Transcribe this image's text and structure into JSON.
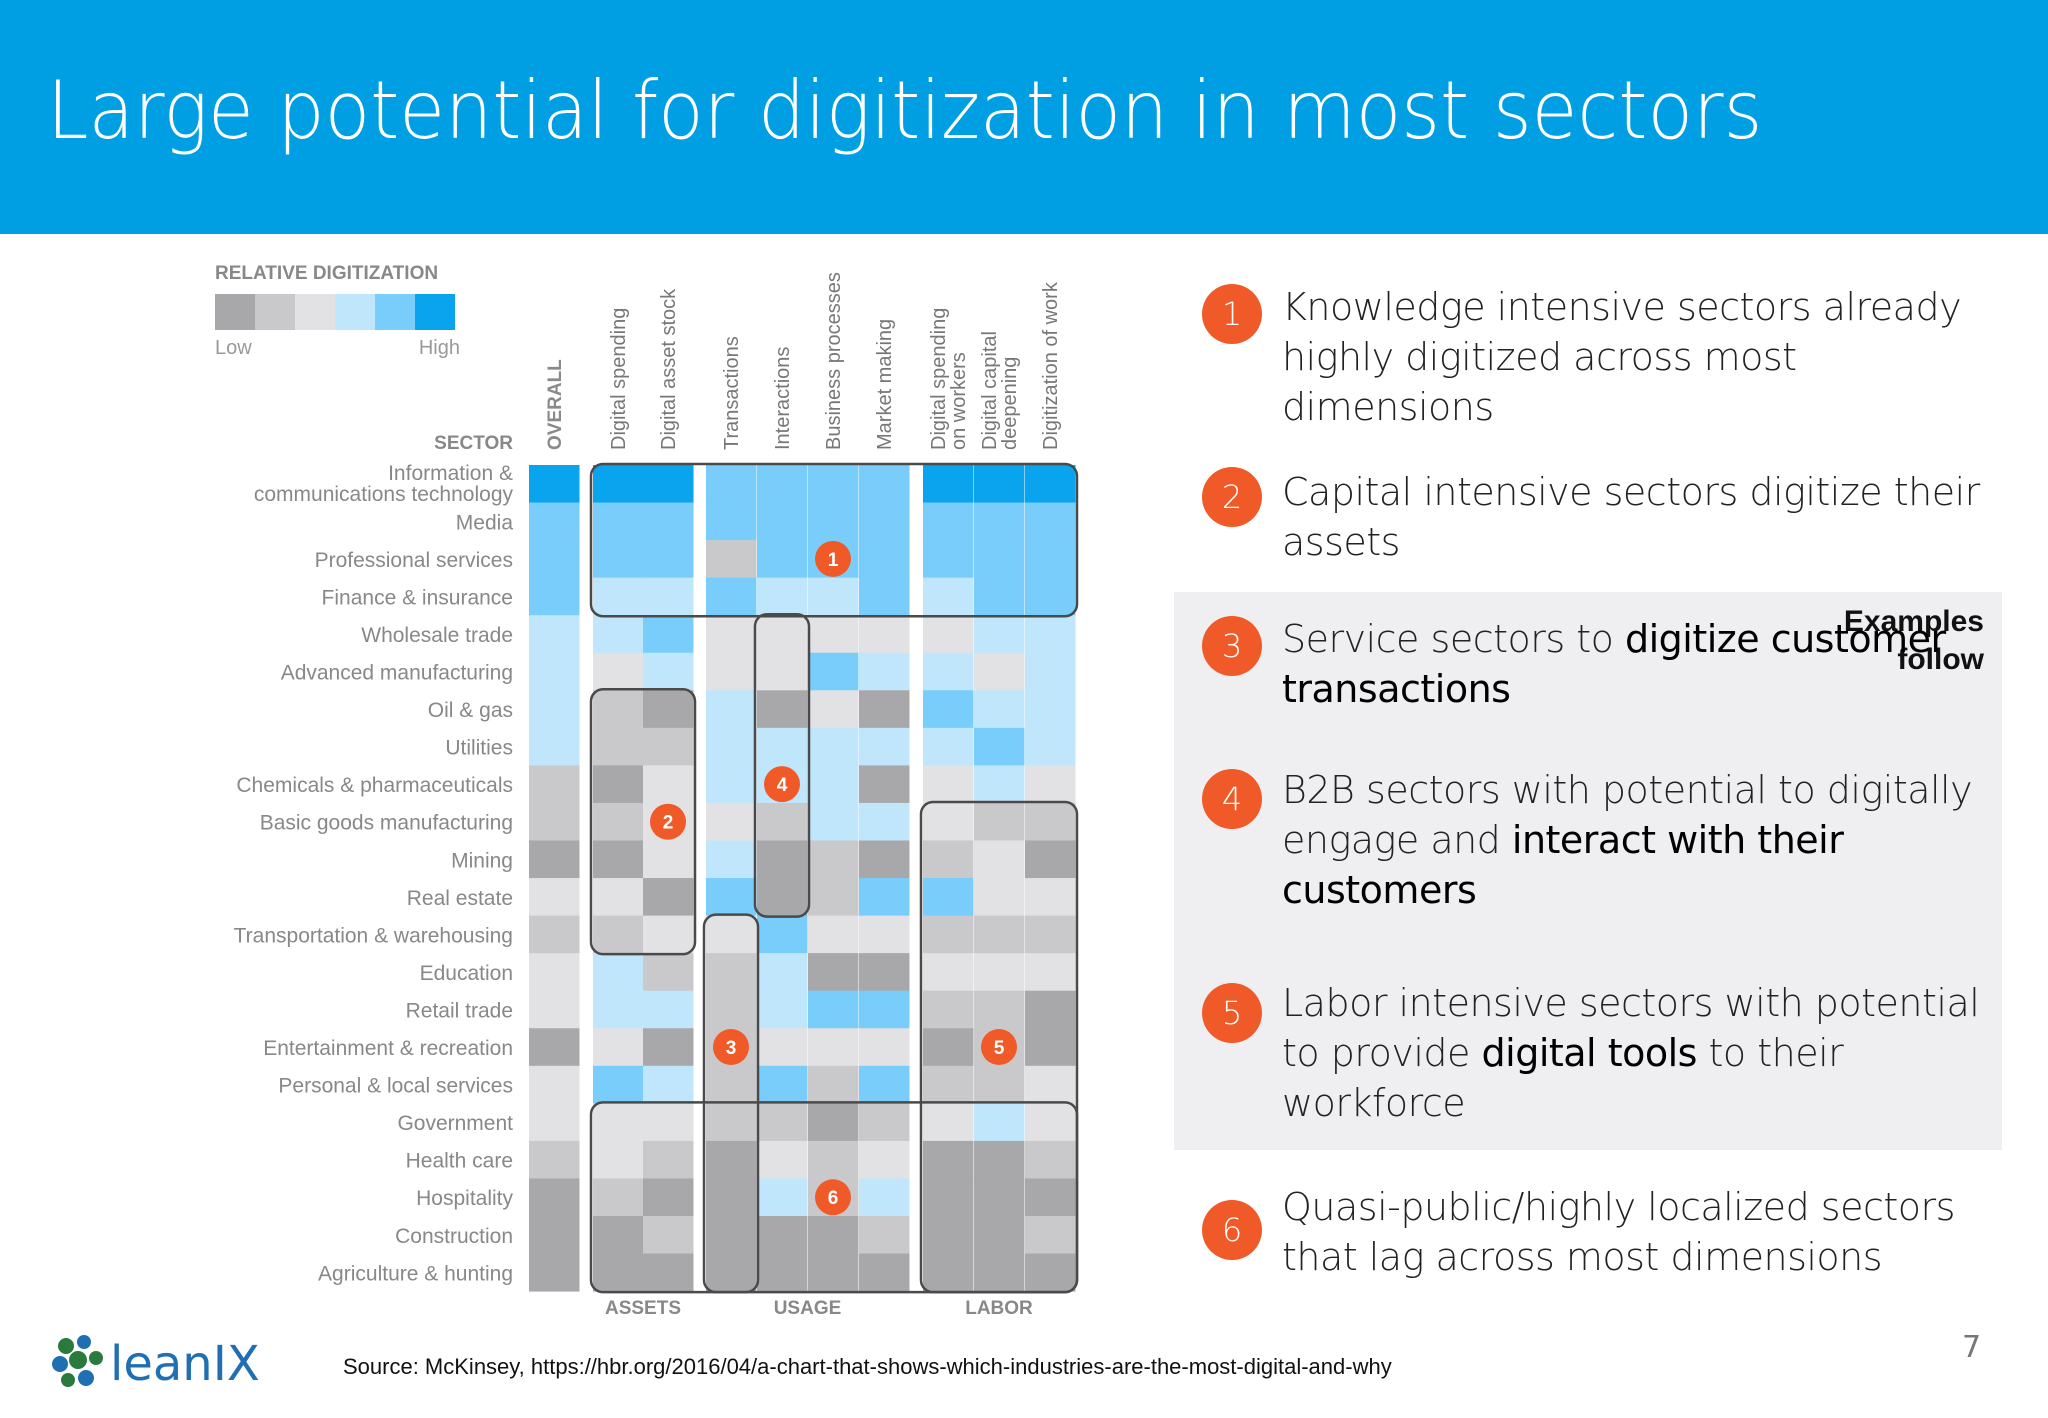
{
  "slide": {
    "title": "Large potential for digitization in most sectors",
    "examples_note": "Examples follow",
    "source": "Source: McKinsey, https://hbr.org/2016/04/a-chart-that-shows-which-industries-are-the-most-digital-and-why",
    "page_number": "7",
    "logo_text": "leanIX"
  },
  "bullets": [
    {
      "number": "1",
      "parts": [
        {
          "text": "Knowledge intensive sectors already highly digitized across most dimensions",
          "bold": false
        }
      ]
    },
    {
      "number": "2",
      "parts": [
        {
          "text": "Capital intensive sectors digitize their assets",
          "bold": false
        }
      ]
    },
    {
      "number": "3",
      "parts": [
        {
          "text": "Service sectors to ",
          "bold": false
        },
        {
          "text": "digitize customer transactions",
          "bold": true
        }
      ]
    },
    {
      "number": "4",
      "parts": [
        {
          "text": "B2B sectors with potential to digitally engage and ",
          "bold": false
        },
        {
          "text": "interact with their customers",
          "bold": true
        }
      ]
    },
    {
      "number": "5",
      "parts": [
        {
          "text": "Labor intensive sectors with potential to provide ",
          "bold": false
        },
        {
          "text": "digital tools",
          "bold": true
        },
        {
          "text": " to their workforce",
          "bold": false
        }
      ]
    },
    {
      "number": "6",
      "parts": [
        {
          "text": "Quasi-public/highly localized sectors that lag across most dimensions",
          "bold": false
        }
      ]
    }
  ],
  "colors": {
    "header": "#009fe3",
    "level_palette": [
      "#a8a8aa",
      "#c9c9cb",
      "#e2e2e4",
      "#c0e6fb",
      "#79cdfa",
      "#0aa3ee"
    ],
    "marker": "#f05a28"
  },
  "chart_data": {
    "type": "heatmap",
    "legend_title": "RELATIVE DIGITIZATION",
    "legend_low": "Low",
    "legend_high": "High",
    "row_header": "SECTOR",
    "columns": [
      "OVERALL",
      "Digital spending",
      "Digital asset stock",
      "Transactions",
      "Interactions",
      "Business processes",
      "Market making",
      "Digital spending on workers",
      "Digital capital deepening",
      "Digitization of work"
    ],
    "column_labels": [
      [
        "OVERALL"
      ],
      [
        "Digital spending"
      ],
      [
        "Digital asset stock"
      ],
      [
        "Transactions"
      ],
      [
        "Interactions"
      ],
      [
        "Business processes"
      ],
      [
        "Market making"
      ],
      [
        "Digital spending",
        "on workers"
      ],
      [
        "Digital capital",
        "deepening"
      ],
      [
        "Digitization of work"
      ]
    ],
    "groups": [
      {
        "label": "ASSETS",
        "columns": [
          1,
          2
        ]
      },
      {
        "label": "USAGE",
        "columns": [
          3,
          4,
          5,
          6
        ]
      },
      {
        "label": "LABOR",
        "columns": [
          7,
          8,
          9
        ]
      }
    ],
    "rows": [
      "Information & communications technology",
      "Media",
      "Professional services",
      "Finance & insurance",
      "Wholesale trade",
      "Advanced manufacturing",
      "Oil & gas",
      "Utilities",
      "Chemicals & pharmaceuticals",
      "Basic goods manufacturing",
      "Mining",
      "Real estate",
      "Transportation & warehousing",
      "Education",
      "Retail trade",
      "Entertainment & recreation",
      "Personal & local services",
      "Government",
      "Health care",
      "Hospitality",
      "Construction",
      "Agriculture & hunting"
    ],
    "row_labels": [
      [
        "Information &",
        "communications technology"
      ],
      [
        "Media"
      ],
      [
        "Professional services"
      ],
      [
        "Finance & insurance"
      ],
      [
        "Wholesale trade"
      ],
      [
        "Advanced manufacturing"
      ],
      [
        "Oil & gas"
      ],
      [
        "Utilities"
      ],
      [
        "Chemicals & pharmaceuticals"
      ],
      [
        "Basic goods manufacturing"
      ],
      [
        "Mining"
      ],
      [
        "Real estate"
      ],
      [
        "Transportation & warehousing"
      ],
      [
        "Education"
      ],
      [
        "Retail trade"
      ],
      [
        "Entertainment & recreation"
      ],
      [
        "Personal & local services"
      ],
      [
        "Government"
      ],
      [
        "Health care"
      ],
      [
        "Hospitality"
      ],
      [
        "Construction"
      ],
      [
        "Agriculture & hunting"
      ]
    ],
    "scale": [
      1,
      6
    ],
    "values": [
      [
        6,
        6,
        6,
        5,
        5,
        5,
        5,
        6,
        6,
        6
      ],
      [
        5,
        5,
        5,
        5,
        5,
        5,
        5,
        5,
        5,
        5
      ],
      [
        5,
        5,
        5,
        2,
        5,
        5,
        5,
        5,
        5,
        5
      ],
      [
        5,
        4,
        4,
        5,
        4,
        4,
        5,
        4,
        5,
        5
      ],
      [
        4,
        4,
        5,
        3,
        3,
        3,
        3,
        3,
        4,
        4
      ],
      [
        4,
        3,
        4,
        3,
        3,
        5,
        4,
        4,
        3,
        4
      ],
      [
        4,
        2,
        1,
        4,
        1,
        3,
        1,
        5,
        4,
        4
      ],
      [
        4,
        2,
        2,
        4,
        4,
        4,
        4,
        4,
        5,
        4
      ],
      [
        2,
        1,
        3,
        4,
        4,
        4,
        1,
        3,
        4,
        3
      ],
      [
        2,
        2,
        3,
        3,
        2,
        4,
        4,
        3,
        2,
        2
      ],
      [
        1,
        1,
        3,
        4,
        1,
        2,
        1,
        2,
        3,
        1
      ],
      [
        3,
        3,
        1,
        5,
        1,
        2,
        5,
        5,
        3,
        3
      ],
      [
        2,
        2,
        3,
        3,
        5,
        3,
        3,
        2,
        2,
        2
      ],
      [
        3,
        4,
        2,
        2,
        4,
        1,
        1,
        3,
        3,
        3
      ],
      [
        3,
        4,
        4,
        2,
        4,
        5,
        5,
        2,
        2,
        1
      ],
      [
        1,
        3,
        1,
        2,
        3,
        3,
        3,
        1,
        2,
        1
      ],
      [
        3,
        5,
        4,
        2,
        5,
        2,
        5,
        2,
        2,
        3
      ],
      [
        3,
        3,
        3,
        2,
        2,
        1,
        2,
        3,
        4,
        3
      ],
      [
        2,
        3,
        2,
        1,
        3,
        2,
        3,
        1,
        1,
        2
      ],
      [
        1,
        2,
        1,
        1,
        4,
        2,
        4,
        1,
        1,
        1
      ],
      [
        1,
        1,
        2,
        1,
        1,
        1,
        2,
        1,
        1,
        2
      ],
      [
        1,
        1,
        1,
        1,
        1,
        1,
        1,
        1,
        1,
        1
      ]
    ],
    "highlights": [
      {
        "label": "1",
        "col_start": 1,
        "col_end": 9,
        "row_start": 0,
        "row_end": 3,
        "marker_col": 5,
        "marker_row": 2
      },
      {
        "label": "2",
        "col_start": 1,
        "col_end": 2,
        "row_start": 6,
        "row_end": 12,
        "marker_col": 2,
        "marker_row": 9
      },
      {
        "label": "3",
        "col_start": 3,
        "col_end": 3,
        "row_start": 12,
        "row_end": 21,
        "marker_col": 3,
        "marker_row": 15
      },
      {
        "label": "4",
        "col_start": 4,
        "col_end": 4,
        "row_start": 4,
        "row_end": 11,
        "marker_col": 4,
        "marker_row": 8
      },
      {
        "label": "5",
        "col_start": 7,
        "col_end": 9,
        "row_start": 9,
        "row_end": 21,
        "marker_col": 8,
        "marker_row": 15
      },
      {
        "label": "6",
        "col_start": 1,
        "col_end": 9,
        "row_start": 17,
        "row_end": 21,
        "marker_col": 5,
        "marker_row": 19
      }
    ]
  }
}
